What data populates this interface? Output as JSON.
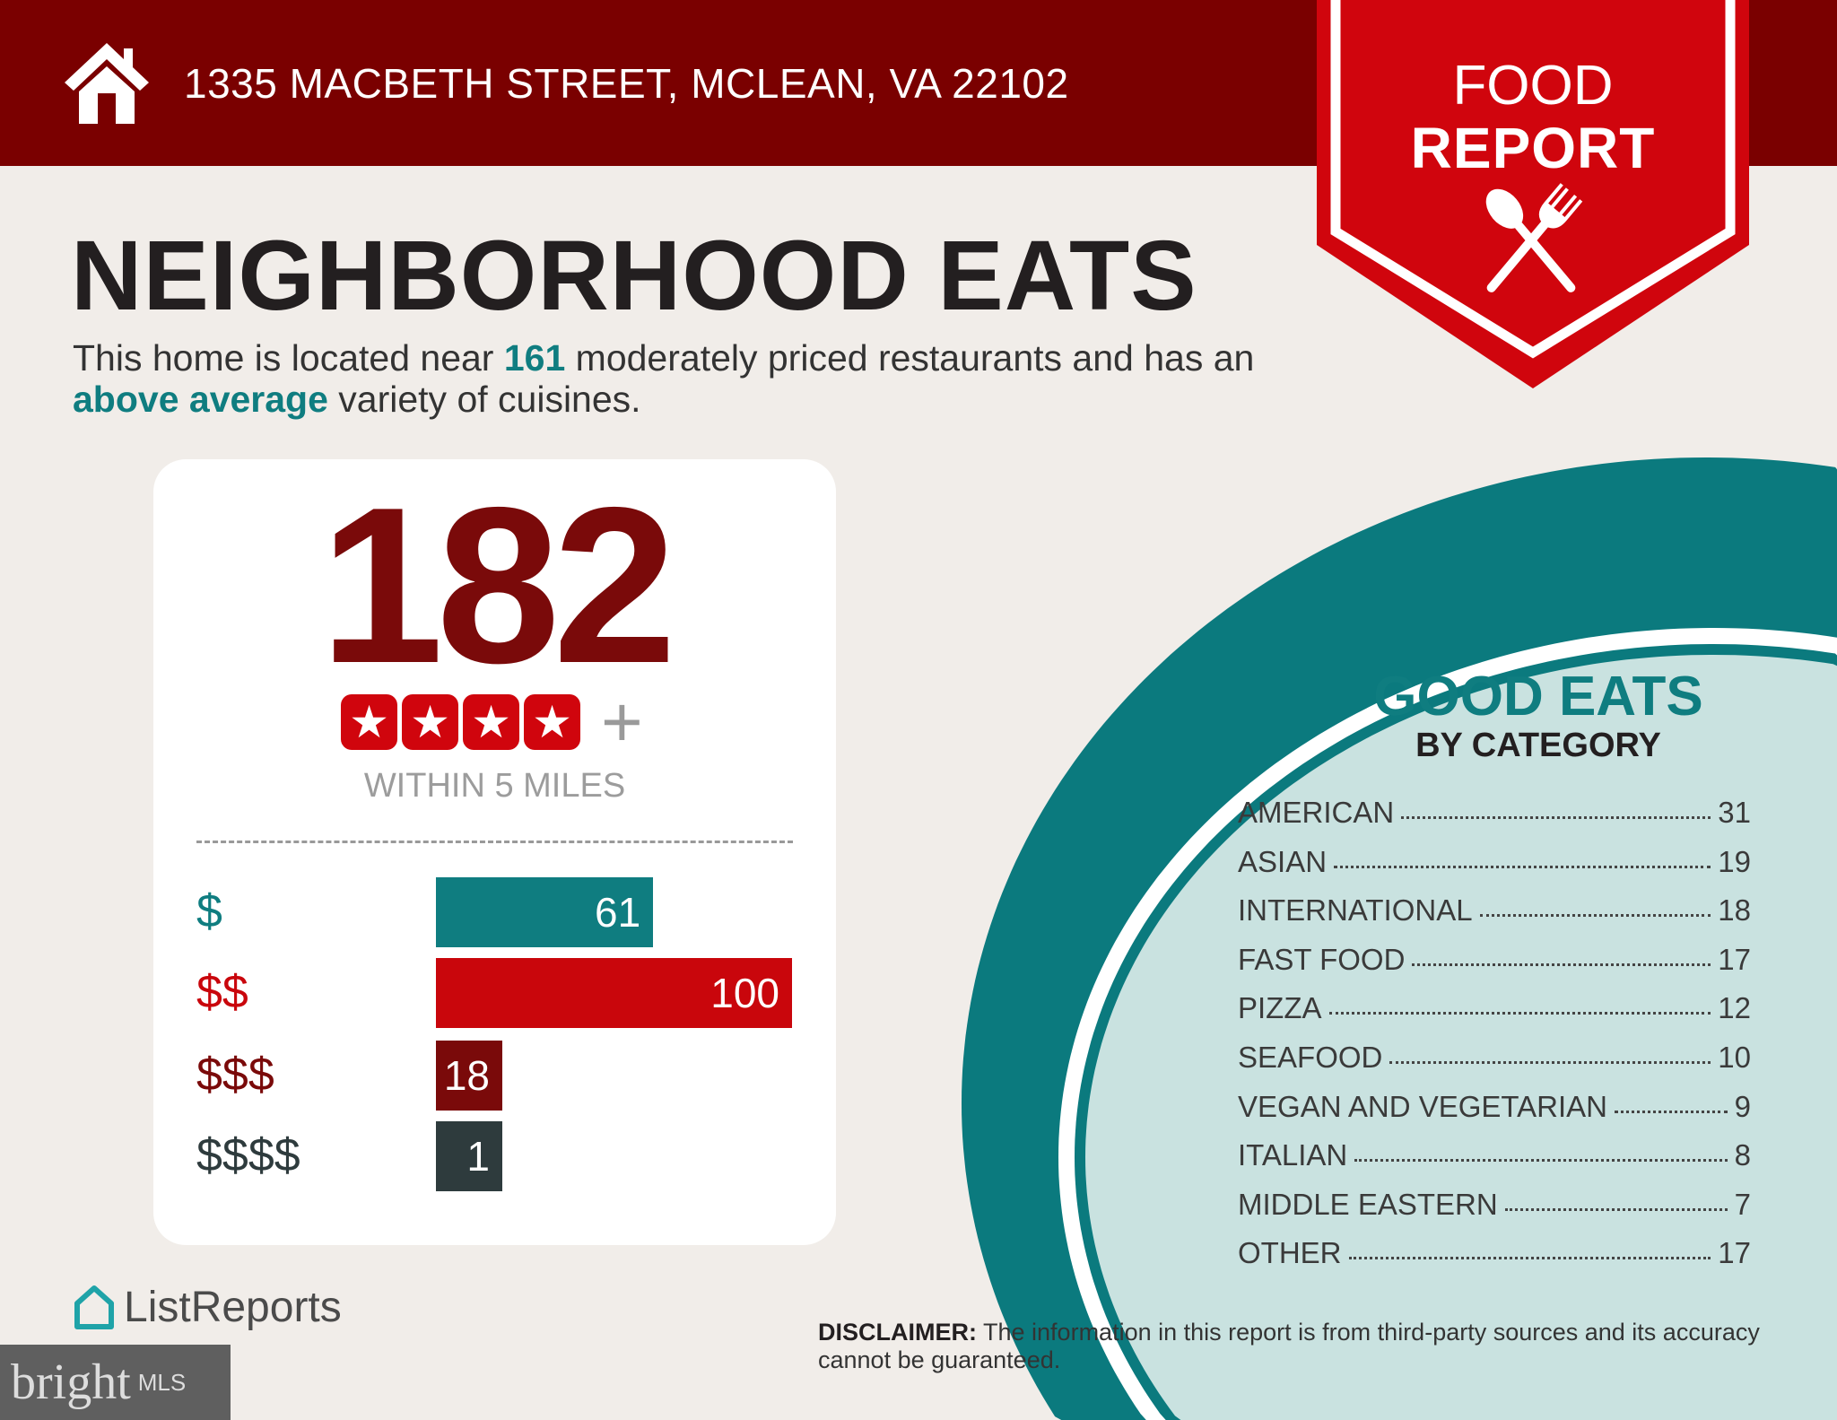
{
  "header": {
    "address": "1335 MACBETH STREET, MCLEAN, VA 22102",
    "icon": "house-icon"
  },
  "badge": {
    "line1": "FOOD",
    "line2": "REPORT",
    "icon": "spoon-fork-icon"
  },
  "title": "NEIGHBORHOOD EATS",
  "subtitle": {
    "part1": "This home is located near ",
    "count": "161",
    "part2": " moderately priced restaurants and has an ",
    "variety": "above average",
    "part3": " variety of cuisines."
  },
  "summary": {
    "total": "182",
    "stars": 4,
    "stars_suffix": "+",
    "radius_label": "WITHIN 5 MILES"
  },
  "price_levels": [
    {
      "label": "$",
      "value": 61,
      "color": "#0f7d80"
    },
    {
      "label": "$$",
      "value": 100,
      "color": "#c9060c"
    },
    {
      "label": "$$$",
      "value": 18,
      "color": "#7a0a0a"
    },
    {
      "label": "$$$$",
      "value": 1,
      "color": "#2e3b3d"
    }
  ],
  "good_eats": {
    "title": "GOOD EATS",
    "subtitle": "BY CATEGORY",
    "categories": [
      {
        "name": "AMERICAN",
        "count": "31"
      },
      {
        "name": "ASIAN",
        "count": "19"
      },
      {
        "name": "INTERNATIONAL",
        "count": "18"
      },
      {
        "name": "FAST FOOD",
        "count": "17"
      },
      {
        "name": "PIZZA",
        "count": "12"
      },
      {
        "name": "SEAFOOD",
        "count": "10"
      },
      {
        "name": "VEGAN AND VEGETARIAN",
        "count": "9"
      },
      {
        "name": "ITALIAN",
        "count": "8"
      },
      {
        "name": "MIDDLE EASTERN",
        "count": "7"
      },
      {
        "name": "OTHER",
        "count": "17"
      }
    ]
  },
  "disclaimer": {
    "label": "DISCLAIMER:",
    "text": " The information in this report is from third-party sources and its accuracy cannot be guaranteed."
  },
  "logos": {
    "listreports": "ListReports",
    "bright": "bright",
    "mls": "MLS"
  },
  "colors": {
    "header": "#7a0000",
    "badge": "#d0050d",
    "teal": "#0f7d80",
    "circle_fill": "#c9e2e0"
  }
}
